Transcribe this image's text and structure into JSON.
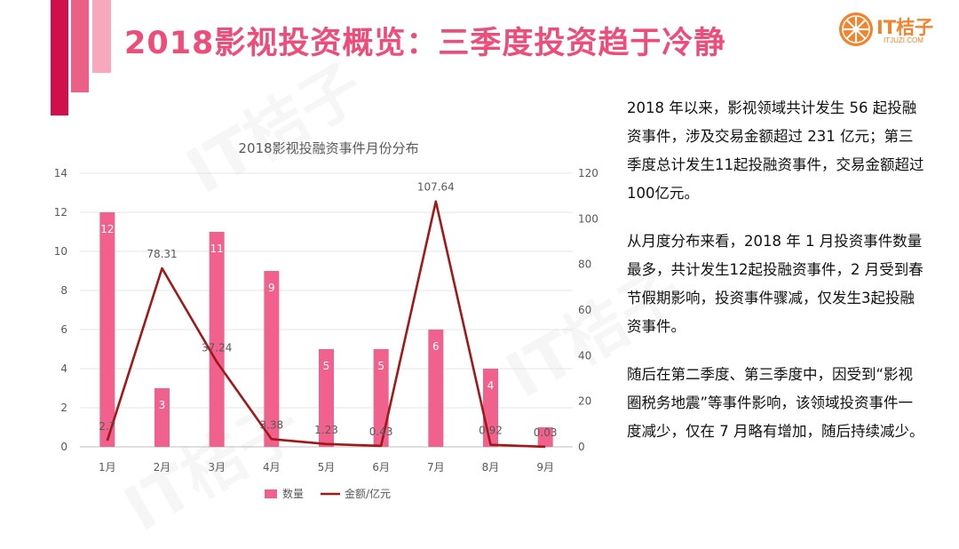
{
  "page": {
    "title": "2018影视投资概览：三季度投资趋于冷静",
    "logo": {
      "brand": "IT桔子",
      "domain": "ITJUZI.COM"
    },
    "watermark": "IT桔子",
    "paragraphs": [
      "2018 年以来，影视领域共计发生 56 起投融资事件，涉及交易金额超过 231 亿元；第三季度总计发生11起投融资事件，交易金额超过100亿元。",
      "从月度分布来看，2018 年 1 月投资事件数量最多，共计发生12起投融资事件，2 月受到春节假期影响，投资事件骤减，仅发生3起投融资事件。",
      "随后在第二季度、第三季度中，因受到“影视圈税务地震”等事件影响，该领域投资事件一度减少，仅在 7 月略有增加，随后持续减少。"
    ],
    "colors": {
      "accent": "#ee4d7a",
      "bar": "#f0628d",
      "line": "#a01818",
      "logo": "#f5822a",
      "deco_dark": "#d0104c",
      "deco_mid": "#ec5f87",
      "deco_light": "#f7a8bd"
    }
  },
  "chart_data": {
    "type": "bar",
    "title": "2018影视投融资事件月份分布",
    "categories": [
      "1月",
      "2月",
      "3月",
      "4月",
      "5月",
      "6月",
      "7月",
      "8月",
      "9月"
    ],
    "series": [
      {
        "name": "数量",
        "type": "bar",
        "axis": "left",
        "values": [
          12,
          3,
          11,
          9,
          5,
          5,
          6,
          4,
          1
        ],
        "labels": [
          "12",
          "3",
          "11",
          "9",
          "5",
          "5",
          "6",
          "4",
          ""
        ]
      },
      {
        "name": "金额/亿元",
        "type": "line",
        "axis": "right",
        "values": [
          2.7,
          78.31,
          37.24,
          3.38,
          1.23,
          0.43,
          107.64,
          0.92,
          0.03
        ],
        "labels": [
          "2.7",
          "78.31",
          "37.24",
          "3.38",
          "1.23",
          "0.43",
          "107.64",
          "0.92",
          "0.03"
        ]
      }
    ],
    "y_left": {
      "min": 0,
      "max": 14,
      "ticks": [
        "0",
        "2",
        "4",
        "6",
        "8",
        "10",
        "12",
        "14"
      ]
    },
    "y_right": {
      "min": 0,
      "max": 120,
      "ticks": [
        "0",
        "20",
        "40",
        "60",
        "80",
        "100",
        "120"
      ]
    },
    "legend": "bottom",
    "grid": true
  }
}
